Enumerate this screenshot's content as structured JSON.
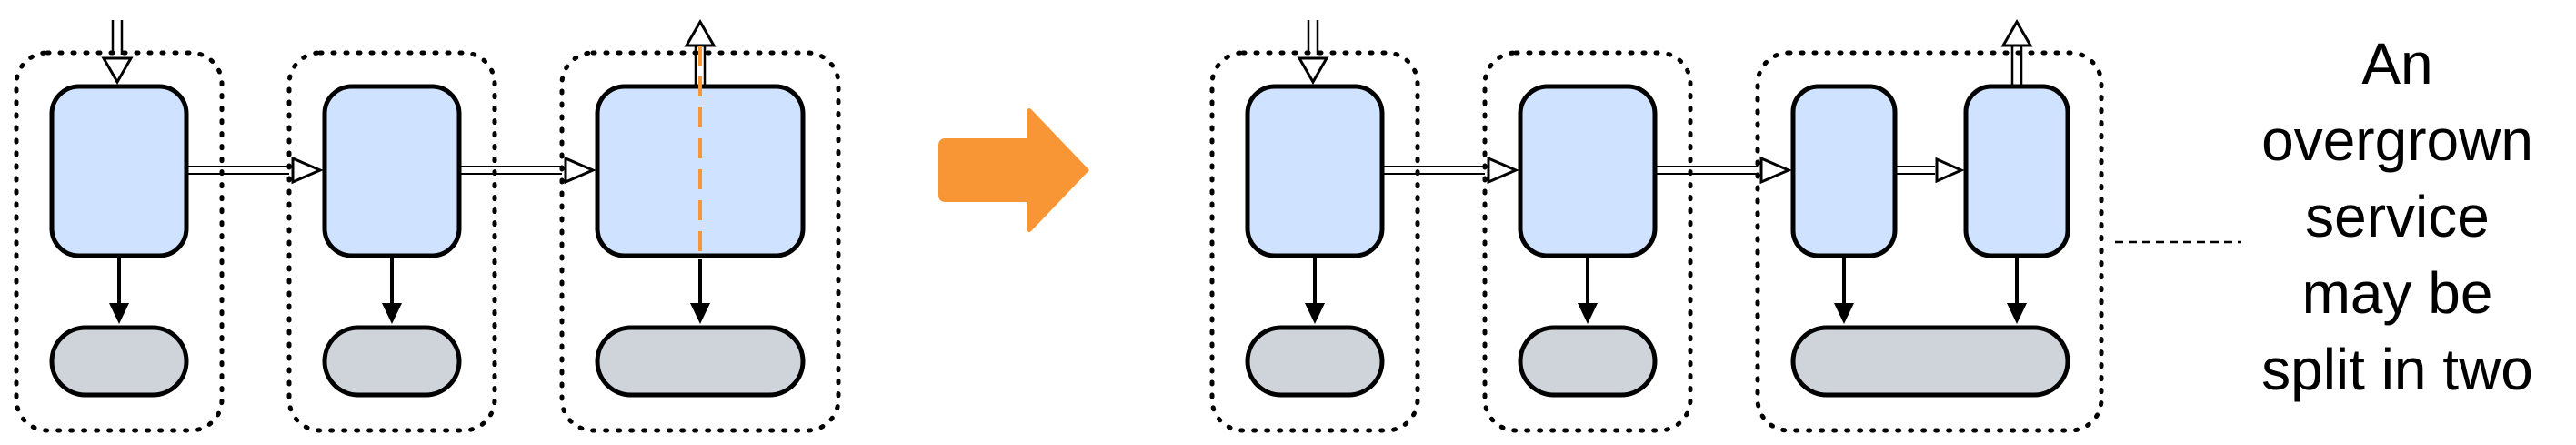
{
  "colors": {
    "service_fill": "#cfe2ff",
    "datastore_fill": "#cfd4db",
    "outline": "#000000",
    "transform_arrow": "#f89535",
    "split_line": "#f89535"
  },
  "caption": {
    "lines": [
      "An",
      "overgrown",
      "service",
      "may be",
      "split in two"
    ]
  }
}
